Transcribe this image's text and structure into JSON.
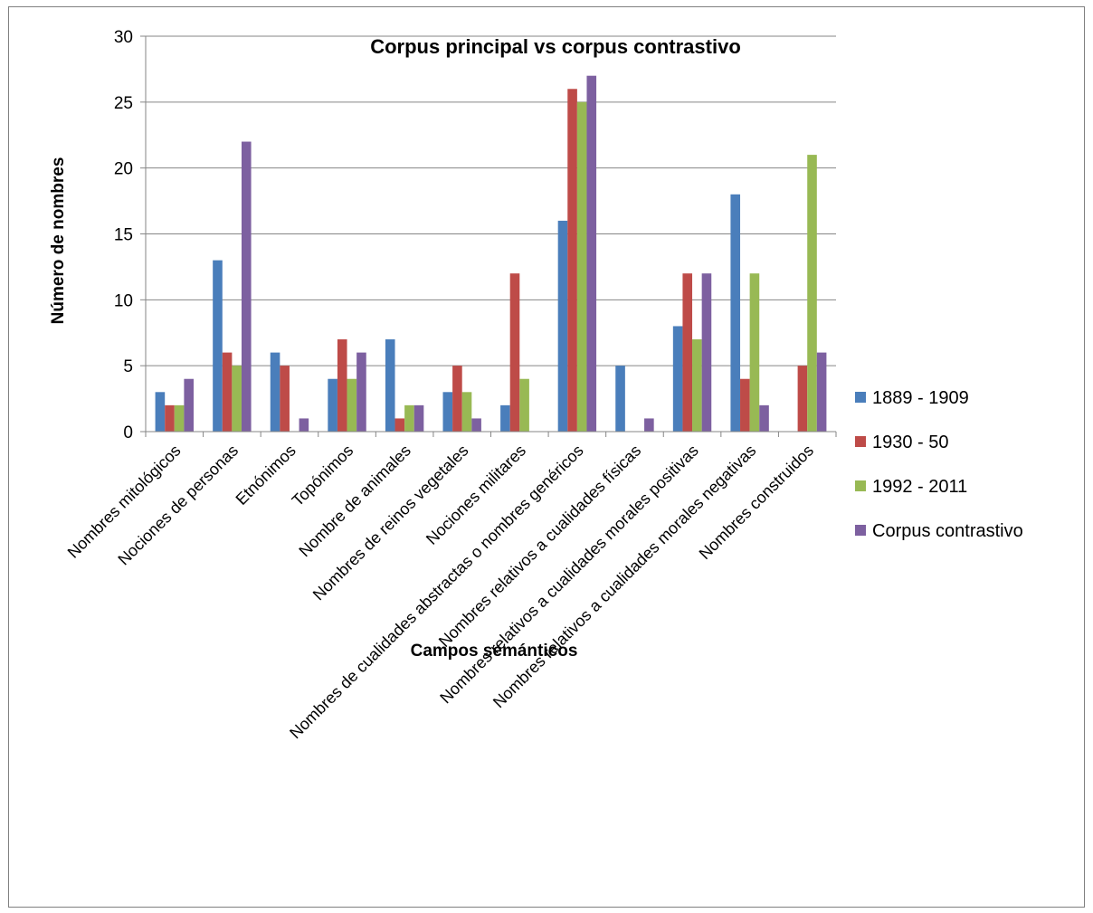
{
  "chart_data": {
    "type": "bar",
    "title": "Corpus principal vs corpus contrastivo",
    "xlabel": "Campos semánticos",
    "ylabel": "Número de nombres",
    "ylim": [
      0,
      30
    ],
    "yticks": [
      0,
      5,
      10,
      15,
      20,
      25,
      30
    ],
    "grid": true,
    "legend_position": "right",
    "categories": [
      "Nombres mitológicos",
      "Nociones de personas",
      "Etnónimos",
      "Topónimos",
      "Nombre de animales",
      "Nombres de reinos vegetales",
      "Nociones militares",
      "Nombres de cualidades abstractas o nombres genéricos",
      "Nombres relativos a cualidades físicas",
      "Nombres relativos a cualidades morales positivas",
      "Nombres relativos a cualidades morales negativas",
      "Nombres construidos"
    ],
    "series": [
      {
        "name": "1889 - 1909",
        "color": "#4a7ebb",
        "values": [
          3,
          13,
          6,
          4,
          7,
          3,
          2,
          16,
          5,
          8,
          18,
          0
        ]
      },
      {
        "name": "1930 - 50",
        "color": "#be4b48",
        "values": [
          2,
          6,
          5,
          7,
          1,
          5,
          12,
          26,
          0,
          12,
          4,
          5
        ]
      },
      {
        "name": "1992 - 2011",
        "color": "#98b954",
        "values": [
          2,
          5,
          0,
          4,
          2,
          3,
          4,
          25,
          0,
          7,
          12,
          21
        ]
      },
      {
        "name": "Corpus contrastivo",
        "color": "#7d60a0",
        "values": [
          4,
          22,
          1,
          6,
          2,
          1,
          0,
          27,
          1,
          12,
          2,
          6
        ]
      }
    ]
  }
}
